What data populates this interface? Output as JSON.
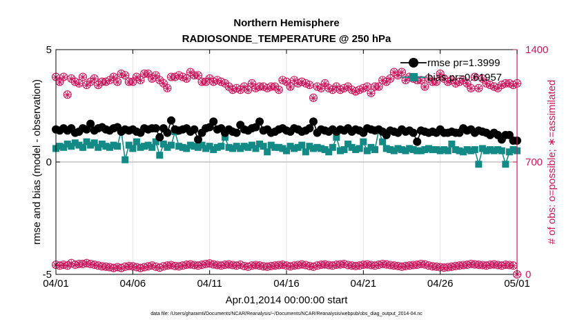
{
  "colors": {
    "rmse": "#000000",
    "bias": "#148a86",
    "obs": "#c8175d",
    "grid": "#e2e2e2",
    "zero": "#b5b5b5"
  },
  "chart_data": {
    "type": "line",
    "title_line1": "Northern Hemisphere",
    "title_line2": "RADIOSONDE_TEMPERATURE @ 250 hPa",
    "xlabel": "Apr.01,2014 00:00:00 start",
    "ylabel_left": "rmse and bias (model - observation)",
    "ylabel_right": "# of obs: o=possible; ∗=assimilated",
    "footnote": "data file: /Users/gharamti/Documents/NCAR/Reanalysis/~/Documents/NCAR/Reanalysis/webpub/obs_diag_output_2014-04.nc",
    "x_ticks": [
      "04/01",
      "04/06",
      "04/11",
      "04/16",
      "04/21",
      "04/26",
      "05/01"
    ],
    "x_tick_values": [
      0,
      5,
      10,
      15,
      20,
      25,
      30
    ],
    "xlim": [
      0,
      30
    ],
    "ylim_left": [
      -5,
      5
    ],
    "y_ticks_left": [
      "-5",
      "0",
      "5"
    ],
    "y_tick_values_left": [
      -5,
      0,
      5
    ],
    "ylim_right": [
      0,
      1400
    ],
    "y_ticks_right": [
      "0",
      "700",
      "1400"
    ],
    "y_tick_values_right": [
      0,
      700,
      1400
    ],
    "legend": {
      "rmse": "rmse pr=1.3999",
      "bias": "bias pr=0.61957"
    },
    "x": [
      0,
      0.25,
      0.5,
      0.75,
      1,
      1.25,
      1.5,
      1.75,
      2,
      2.25,
      2.5,
      2.75,
      3,
      3.25,
      3.5,
      3.75,
      4,
      4.25,
      4.5,
      4.75,
      5,
      5.25,
      5.5,
      5.75,
      6,
      6.25,
      6.5,
      6.75,
      7,
      7.25,
      7.5,
      7.75,
      8,
      8.25,
      8.5,
      8.75,
      9,
      9.25,
      9.5,
      9.75,
      10,
      10.25,
      10.5,
      10.75,
      11,
      11.25,
      11.5,
      11.75,
      12,
      12.25,
      12.5,
      12.75,
      13,
      13.25,
      13.5,
      13.75,
      14,
      14.25,
      14.5,
      14.75,
      15,
      15.25,
      15.5,
      15.75,
      16,
      16.25,
      16.5,
      16.75,
      17,
      17.25,
      17.5,
      17.75,
      18,
      18.25,
      18.5,
      18.75,
      19,
      19.25,
      19.5,
      19.75,
      20,
      20.25,
      20.5,
      20.75,
      21,
      21.25,
      21.5,
      21.75,
      22,
      22.25,
      22.5,
      22.75,
      23,
      23.25,
      23.5,
      23.75,
      24,
      24.25,
      24.5,
      24.75,
      25,
      25.25,
      25.5,
      25.75,
      26,
      26.25,
      26.5,
      26.75,
      27,
      27.25,
      27.5,
      27.75,
      28,
      28.25,
      28.5,
      28.75,
      29,
      29.25,
      29.5,
      29.75,
      30
    ],
    "series": [
      {
        "name": "rmse",
        "values": [
          1.45,
          1.4,
          1.5,
          1.4,
          1.5,
          1.3,
          1.35,
          1.5,
          1.45,
          1.7,
          1.4,
          1.5,
          1.55,
          1.45,
          1.4,
          1.5,
          1.55,
          1.35,
          1.45,
          1.4,
          1.45,
          1.35,
          1.3,
          1.5,
          1.45,
          1.5,
          1.5,
          1.1,
          1.5,
          1.3,
          1.85,
          1.45,
          1.4,
          1.45,
          1.5,
          1.35,
          1.45,
          1.0,
          1.3,
          1.5,
          1.55,
          1.8,
          1.45,
          1.5,
          1.3,
          1.45,
          1.35,
          1.3,
          1.65,
          1.45,
          1.4,
          1.5,
          1.55,
          1.8,
          1.4,
          1.45,
          1.3,
          1.35,
          1.45,
          1.5,
          1.4,
          1.35,
          1.5,
          1.45,
          1.35,
          1.4,
          1.5,
          1.8,
          1.3,
          1.45,
          1.4,
          1.35,
          1.45,
          1.35,
          1.45,
          1.4,
          1.5,
          1.35,
          1.45,
          1.4,
          1.3,
          1.5,
          1.45,
          1.4,
          1.45,
          1.35,
          1.2,
          1.4,
          1.35,
          1.3,
          1.45,
          1.35,
          1.4,
          1.3,
          0.9,
          1.4,
          1.35,
          1.3,
          1.35,
          1.3,
          1.45,
          1.3,
          1.3,
          1.35,
          1.3,
          1.3,
          1.5,
          1.4,
          1.45,
          1.3,
          1.4,
          1.35,
          1.3,
          1.2,
          1.3,
          1.2,
          1.0,
          1.2,
          1.2,
          0.95,
          0.95
        ]
      },
      {
        "name": "bias",
        "values": [
          0.6,
          0.7,
          0.65,
          0.8,
          0.7,
          0.85,
          0.75,
          0.65,
          0.9,
          0.75,
          0.85,
          0.65,
          0.8,
          0.7,
          0.65,
          0.75,
          0.7,
          1.4,
          0.1,
          0.75,
          0.6,
          0.9,
          0.65,
          0.7,
          0.75,
          0.65,
          0.9,
          0.3,
          0.8,
          0.65,
          0.75,
          1.35,
          0.7,
          0.65,
          0.6,
          0.75,
          0.7,
          0.65,
          0.75,
          0.6,
          0.7,
          0.55,
          0.65,
          0.7,
          1.1,
          0.65,
          0.6,
          0.7,
          0.6,
          0.7,
          0.65,
          0.75,
          0.6,
          0.8,
          0.7,
          0.45,
          0.75,
          0.65,
          0.65,
          0.6,
          0.5,
          0.7,
          0.6,
          0.65,
          0.75,
          0.45,
          0.7,
          0.6,
          0.65,
          0.6,
          0.55,
          0.45,
          0.65,
          1.1,
          0.5,
          0.55,
          0.8,
          0.65,
          0.55,
          0.6,
          0.9,
          0.5,
          0.65,
          0.55,
          1.4,
          0.9,
          0.6,
          0.55,
          0.5,
          0.6,
          0.55,
          0.5,
          0.6,
          0.55,
          0.5,
          0.5,
          0.55,
          0.6,
          0.55,
          0.55,
          0.5,
          0.55,
          0.5,
          0.8,
          0.55,
          0.5,
          0.45,
          0.55,
          0.5,
          0.55,
          -0.1,
          0.6,
          0.5,
          0.55,
          0.5,
          0.55,
          0.5,
          -0.1,
          0.45,
          0.55,
          0.5
        ]
      },
      {
        "name": "obs_possible",
        "values": [
          1230,
          1200,
          1230,
          1120,
          1220,
          1200,
          1190,
          1230,
          1180,
          1200,
          1220,
          1180,
          1200,
          1200,
          1210,
          1230,
          1200,
          1250,
          1240,
          1200,
          1200,
          1230,
          1210,
          1250,
          1250,
          1220,
          1240,
          1210,
          1190,
          1160,
          1230,
          1230,
          1240,
          1230,
          1220,
          1260,
          1240,
          1240,
          1200,
          1200,
          1220,
          1200,
          1210,
          1200,
          1190,
          1170,
          1150,
          1160,
          1150,
          1170,
          1150,
          1190,
          1160,
          1170,
          1170,
          1160,
          1170,
          1170,
          1150,
          1210,
          1200,
          1170,
          1210,
          1190,
          1200,
          1190,
          1180,
          1100,
          1170,
          1160,
          1190,
          1160,
          1150,
          1170,
          1150,
          1160,
          1170,
          1150,
          1140,
          1150,
          1160,
          1170,
          1130,
          1170,
          1170,
          1210,
          1200,
          1220,
          1260,
          1240,
          1260,
          1210,
          1230,
          1220,
          1210,
          1210,
          1170,
          1220,
          1200,
          1200,
          1250,
          1220,
          1200,
          1210,
          1190,
          1200,
          1210,
          1190,
          1160,
          1230,
          1160,
          1220,
          1190,
          1180,
          1170,
          1160,
          1180,
          1190,
          1190,
          1180,
          1190
        ]
      },
      {
        "name": "obs_assimilated",
        "values": [
          1228,
          1198,
          1228,
          1118,
          1218,
          1198,
          1188,
          1228,
          1178,
          1198,
          1218,
          1178,
          1198,
          1198,
          1208,
          1228,
          1198,
          1248,
          1238,
          1198,
          1198,
          1228,
          1208,
          1248,
          1248,
          1218,
          1238,
          1208,
          1188,
          1158,
          1228,
          1228,
          1238,
          1228,
          1218,
          1258,
          1238,
          1238,
          1198,
          1198,
          1218,
          1198,
          1208,
          1198,
          1188,
          1168,
          1148,
          1158,
          1148,
          1168,
          1148,
          1188,
          1158,
          1168,
          1168,
          1158,
          1168,
          1168,
          1148,
          1208,
          1198,
          1168,
          1208,
          1188,
          1198,
          1188,
          1178,
          1098,
          1168,
          1158,
          1188,
          1158,
          1148,
          1168,
          1148,
          1158,
          1168,
          1148,
          1138,
          1148,
          1158,
          1168,
          1128,
          1168,
          1168,
          1208,
          1198,
          1218,
          1258,
          1238,
          1258,
          1208,
          1228,
          1218,
          1208,
          1208,
          1168,
          1218,
          1198,
          1198,
          1248,
          1218,
          1198,
          1208,
          1188,
          1198,
          1208,
          1188,
          1158,
          1228,
          1158,
          1218,
          1188,
          1178,
          1168,
          1158,
          1178,
          1188,
          1188,
          1178,
          1188
        ]
      },
      {
        "name": "obs_low_possible",
        "values": [
          60,
          55,
          60,
          55,
          70,
          60,
          65,
          65,
          70,
          65,
          60,
          55,
          50,
          48,
          45,
          40,
          45,
          40,
          48,
          52,
          50,
          45,
          40,
          45,
          50,
          55,
          48,
          42,
          50,
          55,
          58,
          52,
          50,
          55,
          60,
          62,
          58,
          55,
          60,
          65,
          68,
          62,
          58,
          55,
          60,
          62,
          58,
          55,
          60,
          52,
          48,
          55,
          58,
          55,
          50,
          48,
          52,
          55,
          58,
          60,
          55,
          50,
          55,
          58,
          62,
          58,
          52,
          48,
          55,
          60,
          62,
          58,
          55,
          60,
          62,
          65,
          58,
          55,
          52,
          55,
          60,
          62,
          58,
          55,
          60,
          65,
          62,
          58,
          55,
          52,
          48,
          52,
          55,
          58,
          60,
          65,
          62,
          55,
          50,
          48,
          45,
          42,
          45,
          48,
          52,
          55,
          58,
          60,
          65,
          62,
          60,
          58,
          55,
          60,
          62,
          58,
          55,
          60,
          58,
          55,
          0
        ]
      },
      {
        "name": "obs_low_assimilated",
        "values": [
          58,
          53,
          58,
          53,
          68,
          58,
          63,
          63,
          68,
          63,
          58,
          53,
          48,
          46,
          43,
          38,
          43,
          38,
          46,
          50,
          48,
          43,
          38,
          43,
          48,
          53,
          46,
          40,
          48,
          53,
          56,
          50,
          48,
          53,
          58,
          60,
          56,
          53,
          58,
          63,
          66,
          60,
          56,
          53,
          58,
          60,
          56,
          53,
          58,
          50,
          46,
          53,
          56,
          53,
          48,
          46,
          50,
          53,
          56,
          58,
          53,
          48,
          53,
          56,
          60,
          56,
          50,
          46,
          53,
          58,
          60,
          56,
          53,
          58,
          60,
          63,
          56,
          53,
          50,
          53,
          58,
          60,
          56,
          53,
          58,
          63,
          60,
          56,
          53,
          50,
          46,
          50,
          53,
          56,
          58,
          63,
          60,
          53,
          48,
          46,
          43,
          40,
          43,
          46,
          50,
          53,
          56,
          58,
          63,
          60,
          58,
          56,
          53,
          58,
          60,
          56,
          53,
          58,
          56,
          53,
          0
        ]
      }
    ]
  }
}
